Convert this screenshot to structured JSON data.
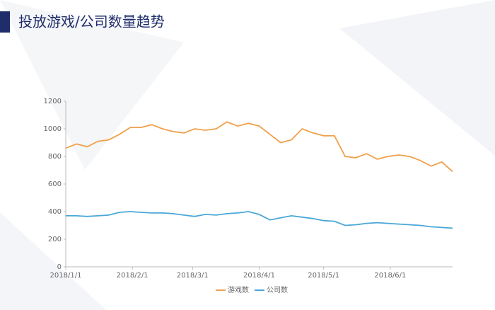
{
  "title": "投放游戏/公司数量趋势",
  "chart_data": {
    "type": "line",
    "x": [
      "2018/1/1",
      "2018/1/6",
      "2018/1/11",
      "2018/1/16",
      "2018/1/21",
      "2018/1/26",
      "2018/1/31",
      "2018/2/5",
      "2018/2/10",
      "2018/2/15",
      "2018/2/20",
      "2018/2/25",
      "2018/3/2",
      "2018/3/7",
      "2018/3/12",
      "2018/3/17",
      "2018/3/22",
      "2018/3/27",
      "2018/4/1",
      "2018/4/6",
      "2018/4/11",
      "2018/4/16",
      "2018/4/21",
      "2018/4/26",
      "2018/5/1",
      "2018/5/6",
      "2018/5/11",
      "2018/5/16",
      "2018/5/21",
      "2018/5/26",
      "2018/5/31",
      "2018/6/5",
      "2018/6/10",
      "2018/6/15",
      "2018/6/20",
      "2018/6/25",
      "2018/6/30"
    ],
    "series": [
      {
        "name": "游戏数",
        "color": "#f0a04b",
        "values": [
          860,
          890,
          870,
          910,
          920,
          960,
          1010,
          1010,
          1030,
          1000,
          980,
          970,
          1000,
          990,
          1000,
          1050,
          1020,
          1040,
          1020,
          960,
          900,
          920,
          1000,
          970,
          950,
          950,
          800,
          790,
          820,
          780,
          800,
          810,
          800,
          770,
          730,
          760,
          690
        ]
      },
      {
        "name": "公司数",
        "color": "#4aa7d8",
        "values": [
          370,
          370,
          365,
          370,
          375,
          395,
          400,
          395,
          390,
          390,
          385,
          375,
          365,
          380,
          375,
          385,
          390,
          400,
          380,
          340,
          355,
          370,
          360,
          350,
          335,
          330,
          300,
          305,
          315,
          320,
          315,
          310,
          305,
          300,
          290,
          285,
          280
        ]
      }
    ],
    "xlim": [
      "2018/1/1",
      "2018/6/30"
    ],
    "xticks": [
      "2018/1/1",
      "2018/2/1",
      "2018/3/1",
      "2018/4/1",
      "2018/5/1",
      "2018/6/1"
    ],
    "ylim": [
      0,
      1200
    ],
    "yticks": [
      0,
      200,
      400,
      600,
      800,
      1000,
      1200
    ],
    "legend": "bottom"
  }
}
